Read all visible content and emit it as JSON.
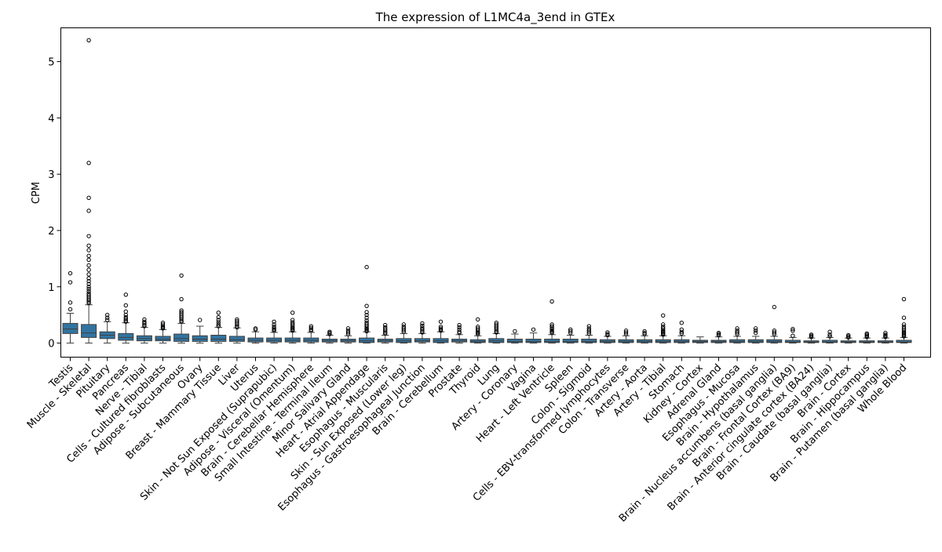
{
  "chart_data": {
    "type": "boxplot",
    "title": "The expression of L1MC4a_3end in GTEx",
    "xlabel": "",
    "ylabel": "CPM",
    "ylim": [
      -0.25,
      5.6
    ],
    "yticks": [
      0,
      1,
      2,
      3,
      4,
      5
    ],
    "grid": false,
    "legend": "none",
    "box_color": "#3274a1",
    "categories": [
      "Testis",
      "Muscle - Skeletal",
      "Pituitary",
      "Pancreas",
      "Nerve - Tibial",
      "Cells - Cultured fibroblasts",
      "Adipose - Subcutaneous",
      "Ovary",
      "Breast - Mammary Tissue",
      "Liver",
      "Uterus",
      "Skin - Not Sun Exposed (Suprapubic)",
      "Adipose - Visceral (Omentum)",
      "Brain - Cerebellar Hemisphere",
      "Small Intestine - Terminal Ileum",
      "Minor Salivary Gland",
      "Heart - Atrial Appendage",
      "Esophagus - Muscularis",
      "Skin - Sun Exposed (Lower leg)",
      "Esophagus - Gastroesophageal Junction",
      "Brain - Cerebellum",
      "Prostate",
      "Thyroid",
      "Lung",
      "Artery - Coronary",
      "Vagina",
      "Heart - Left Ventricle",
      "Spleen",
      "Colon - Sigmoid",
      "Cells - EBV-transformed lymphocytes",
      "Colon - Transverse",
      "Artery - Aorta",
      "Artery - Tibial",
      "Stomach",
      "Kidney - Cortex",
      "Adrenal Gland",
      "Esophagus - Mucosa",
      "Brain - Hypothalamus",
      "Brain - Nucleus accumbens (basal ganglia)",
      "Brain - Frontal Cortex (BA9)",
      "Brain - Anterior cingulate cortex (BA24)",
      "Brain - Caudate (basal ganglia)",
      "Brain - Cortex",
      "Brain - Hippocampus",
      "Brain - Putamen (basal ganglia)",
      "Whole Blood"
    ],
    "boxes": [
      {
        "q1": 0.17,
        "median": 0.25,
        "q3": 0.35,
        "whisker_low": 0.0,
        "whisker_high": 0.53,
        "outliers": [
          1.24,
          1.08,
          0.72,
          0.6
        ]
      },
      {
        "q1": 0.1,
        "median": 0.18,
        "q3": 0.33,
        "whisker_low": 0.0,
        "whisker_high": 0.68,
        "outliers": [
          5.38,
          3.2,
          2.58,
          2.35,
          1.9,
          1.73,
          1.65,
          1.55,
          1.48,
          1.38,
          1.3,
          1.22,
          1.15,
          1.1,
          1.05,
          1.0,
          0.96,
          0.92,
          0.88,
          0.85,
          0.82,
          0.79,
          0.76,
          0.73,
          0.71
        ]
      },
      {
        "q1": 0.08,
        "median": 0.14,
        "q3": 0.2,
        "whisker_low": 0.0,
        "whisker_high": 0.38,
        "outliers": [
          0.5,
          0.45,
          0.41
        ]
      },
      {
        "q1": 0.05,
        "median": 0.1,
        "q3": 0.17,
        "whisker_low": 0.0,
        "whisker_high": 0.36,
        "outliers": [
          0.86,
          0.67,
          0.56,
          0.5,
          0.46,
          0.43,
          0.4,
          0.38
        ]
      },
      {
        "q1": 0.04,
        "median": 0.08,
        "q3": 0.13,
        "whisker_low": 0.0,
        "whisker_high": 0.28,
        "outliers": [
          0.42,
          0.38,
          0.35,
          0.32,
          0.3
        ]
      },
      {
        "q1": 0.04,
        "median": 0.07,
        "q3": 0.12,
        "whisker_low": 0.0,
        "whisker_high": 0.24,
        "outliers": [
          0.36,
          0.33,
          0.3,
          0.28,
          0.26
        ]
      },
      {
        "q1": 0.03,
        "median": 0.08,
        "q3": 0.16,
        "whisker_low": 0.0,
        "whisker_high": 0.35,
        "outliers": [
          1.2,
          0.78,
          0.58,
          0.55,
          0.52,
          0.49,
          0.46,
          0.43,
          0.4,
          0.38
        ]
      },
      {
        "q1": 0.03,
        "median": 0.07,
        "q3": 0.13,
        "whisker_low": 0.0,
        "whisker_high": 0.3,
        "outliers": [
          0.41
        ]
      },
      {
        "q1": 0.03,
        "median": 0.07,
        "q3": 0.14,
        "whisker_low": 0.0,
        "whisker_high": 0.28,
        "outliers": [
          0.54,
          0.46,
          0.41,
          0.37,
          0.33,
          0.3
        ]
      },
      {
        "q1": 0.03,
        "median": 0.06,
        "q3": 0.12,
        "whisker_low": 0.0,
        "whisker_high": 0.27,
        "outliers": [
          0.42,
          0.39,
          0.36,
          0.33,
          0.3,
          0.28
        ]
      },
      {
        "q1": 0.02,
        "median": 0.05,
        "q3": 0.09,
        "whisker_low": 0.0,
        "whisker_high": 0.2,
        "outliers": [
          0.26,
          0.24
        ]
      },
      {
        "q1": 0.02,
        "median": 0.05,
        "q3": 0.09,
        "whisker_low": 0.0,
        "whisker_high": 0.19,
        "outliers": [
          0.38,
          0.33,
          0.29,
          0.26,
          0.24,
          0.22
        ]
      },
      {
        "q1": 0.02,
        "median": 0.05,
        "q3": 0.09,
        "whisker_low": 0.0,
        "whisker_high": 0.2,
        "outliers": [
          0.54,
          0.41,
          0.37,
          0.34,
          0.31,
          0.28,
          0.26,
          0.24,
          0.22
        ]
      },
      {
        "q1": 0.02,
        "median": 0.05,
        "q3": 0.09,
        "whisker_low": 0.0,
        "whisker_high": 0.19,
        "outliers": [
          0.3,
          0.27,
          0.24,
          0.22
        ]
      },
      {
        "q1": 0.02,
        "median": 0.04,
        "q3": 0.07,
        "whisker_low": 0.0,
        "whisker_high": 0.14,
        "outliers": [
          0.2,
          0.18,
          0.16
        ]
      },
      {
        "q1": 0.02,
        "median": 0.04,
        "q3": 0.07,
        "whisker_low": 0.0,
        "whisker_high": 0.13,
        "outliers": [
          0.26,
          0.22,
          0.19,
          0.16
        ]
      },
      {
        "q1": 0.01,
        "median": 0.04,
        "q3": 0.09,
        "whisker_low": 0.0,
        "whisker_high": 0.2,
        "outliers": [
          1.35,
          0.66,
          0.55,
          0.5,
          0.45,
          0.4,
          0.36,
          0.33,
          0.3,
          0.27,
          0.25,
          0.23,
          0.21
        ]
      },
      {
        "q1": 0.02,
        "median": 0.04,
        "q3": 0.07,
        "whisker_low": 0.0,
        "whisker_high": 0.14,
        "outliers": [
          0.32,
          0.28,
          0.25,
          0.22,
          0.19,
          0.17
        ]
      },
      {
        "q1": 0.01,
        "median": 0.04,
        "q3": 0.08,
        "whisker_low": 0.0,
        "whisker_high": 0.17,
        "outliers": [
          0.33,
          0.29,
          0.26,
          0.23,
          0.2
        ]
      },
      {
        "q1": 0.02,
        "median": 0.04,
        "q3": 0.08,
        "whisker_low": 0.0,
        "whisker_high": 0.17,
        "outliers": [
          0.35,
          0.31,
          0.27,
          0.24,
          0.21,
          0.19
        ]
      },
      {
        "q1": 0.01,
        "median": 0.04,
        "q3": 0.08,
        "whisker_low": 0.0,
        "whisker_high": 0.2,
        "outliers": [
          0.38,
          0.29,
          0.26,
          0.24,
          0.22
        ]
      },
      {
        "q1": 0.02,
        "median": 0.04,
        "q3": 0.07,
        "whisker_low": 0.0,
        "whisker_high": 0.15,
        "outliers": [
          0.32,
          0.28,
          0.24,
          0.2,
          0.18
        ]
      },
      {
        "q1": 0.01,
        "median": 0.03,
        "q3": 0.06,
        "whisker_low": 0.0,
        "whisker_high": 0.13,
        "outliers": [
          0.42,
          0.29,
          0.26,
          0.23,
          0.2,
          0.18,
          0.16
        ]
      },
      {
        "q1": 0.01,
        "median": 0.04,
        "q3": 0.08,
        "whisker_low": 0.0,
        "whisker_high": 0.17,
        "outliers": [
          0.36,
          0.33,
          0.3,
          0.27,
          0.24,
          0.21,
          0.19
        ]
      },
      {
        "q1": 0.01,
        "median": 0.03,
        "q3": 0.07,
        "whisker_low": 0.0,
        "whisker_high": 0.16,
        "outliers": [
          0.21
        ]
      },
      {
        "q1": 0.01,
        "median": 0.03,
        "q3": 0.07,
        "whisker_low": 0.0,
        "whisker_high": 0.18,
        "outliers": [
          0.24
        ]
      },
      {
        "q1": 0.01,
        "median": 0.03,
        "q3": 0.07,
        "whisker_low": 0.0,
        "whisker_high": 0.15,
        "outliers": [
          0.74,
          0.33,
          0.3,
          0.27,
          0.25,
          0.22,
          0.2,
          0.18
        ]
      },
      {
        "q1": 0.01,
        "median": 0.03,
        "q3": 0.07,
        "whisker_low": 0.0,
        "whisker_high": 0.14,
        "outliers": [
          0.24,
          0.21,
          0.18
        ]
      },
      {
        "q1": 0.01,
        "median": 0.03,
        "q3": 0.07,
        "whisker_low": 0.0,
        "whisker_high": 0.14,
        "outliers": [
          0.3,
          0.26,
          0.23,
          0.2,
          0.17
        ]
      },
      {
        "q1": 0.01,
        "median": 0.03,
        "q3": 0.06,
        "whisker_low": 0.0,
        "whisker_high": 0.12,
        "outliers": [
          0.19,
          0.16,
          0.14
        ]
      },
      {
        "q1": 0.01,
        "median": 0.03,
        "q3": 0.06,
        "whisker_low": 0.0,
        "whisker_high": 0.13,
        "outliers": [
          0.22,
          0.19,
          0.16
        ]
      },
      {
        "q1": 0.01,
        "median": 0.03,
        "q3": 0.06,
        "whisker_low": 0.0,
        "whisker_high": 0.13,
        "outliers": [
          0.21,
          0.18,
          0.16
        ]
      },
      {
        "q1": 0.01,
        "median": 0.03,
        "q3": 0.06,
        "whisker_low": 0.0,
        "whisker_high": 0.13,
        "outliers": [
          0.49,
          0.33,
          0.29,
          0.26,
          0.23,
          0.21,
          0.19,
          0.17,
          0.15
        ]
      },
      {
        "q1": 0.01,
        "median": 0.03,
        "q3": 0.06,
        "whisker_low": 0.0,
        "whisker_high": 0.13,
        "outliers": [
          0.36,
          0.24,
          0.2,
          0.17
        ]
      },
      {
        "q1": 0.01,
        "median": 0.03,
        "q3": 0.05,
        "whisker_low": 0.0,
        "whisker_high": 0.11,
        "outliers": []
      },
      {
        "q1": 0.01,
        "median": 0.03,
        "q3": 0.05,
        "whisker_low": 0.0,
        "whisker_high": 0.11,
        "outliers": [
          0.18,
          0.16,
          0.14
        ]
      },
      {
        "q1": 0.01,
        "median": 0.03,
        "q3": 0.06,
        "whisker_low": 0.0,
        "whisker_high": 0.12,
        "outliers": [
          0.26,
          0.22,
          0.19,
          0.16
        ]
      },
      {
        "q1": 0.01,
        "median": 0.03,
        "q3": 0.06,
        "whisker_low": 0.0,
        "whisker_high": 0.12,
        "outliers": [
          0.26,
          0.22,
          0.18
        ]
      },
      {
        "q1": 0.01,
        "median": 0.03,
        "q3": 0.06,
        "whisker_low": 0.0,
        "whisker_high": 0.12,
        "outliers": [
          0.64,
          0.22,
          0.19,
          0.16
        ]
      },
      {
        "q1": 0.01,
        "median": 0.02,
        "q3": 0.05,
        "whisker_low": 0.0,
        "whisker_high": 0.1,
        "outliers": [
          0.25,
          0.22,
          0.13
        ]
      },
      {
        "q1": 0.01,
        "median": 0.02,
        "q3": 0.04,
        "whisker_low": 0.0,
        "whisker_high": 0.09,
        "outliers": [
          0.15,
          0.13,
          0.11
        ]
      },
      {
        "q1": 0.01,
        "median": 0.02,
        "q3": 0.05,
        "whisker_low": 0.0,
        "whisker_high": 0.1,
        "outliers": [
          0.2,
          0.15,
          0.12
        ]
      },
      {
        "q1": 0.01,
        "median": 0.02,
        "q3": 0.04,
        "whisker_low": 0.0,
        "whisker_high": 0.09,
        "outliers": [
          0.14,
          0.12,
          0.1
        ]
      },
      {
        "q1": 0.01,
        "median": 0.02,
        "q3": 0.04,
        "whisker_low": 0.0,
        "whisker_high": 0.09,
        "outliers": [
          0.17,
          0.15,
          0.13,
          0.11
        ]
      },
      {
        "q1": 0.01,
        "median": 0.02,
        "q3": 0.04,
        "whisker_low": 0.0,
        "whisker_high": 0.09,
        "outliers": [
          0.18,
          0.15,
          0.13,
          0.11
        ]
      },
      {
        "q1": 0.01,
        "median": 0.02,
        "q3": 0.05,
        "whisker_low": 0.0,
        "whisker_high": 0.1,
        "outliers": [
          0.78,
          0.45,
          0.33,
          0.29,
          0.26,
          0.23,
          0.2,
          0.18,
          0.16,
          0.14,
          0.12
        ]
      }
    ]
  }
}
